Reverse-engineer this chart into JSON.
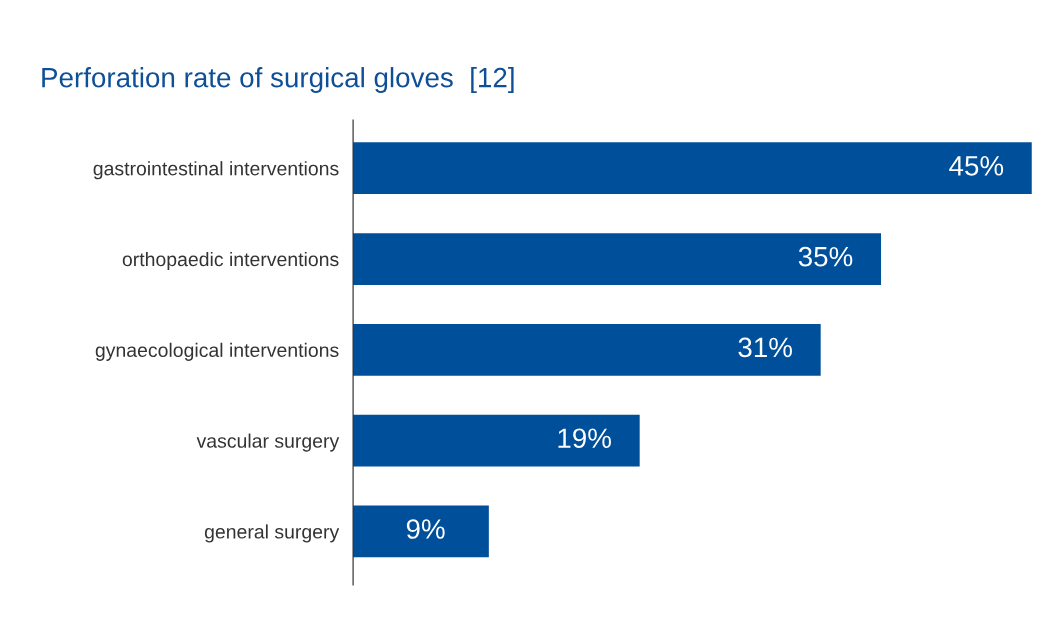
{
  "chart_data": {
    "type": "bar",
    "orientation": "horizontal",
    "title": "Perforation rate of surgical gloves  [12]",
    "categories": [
      "gastrointestinal interventions",
      "orthopaedic interventions",
      "gynaecological interventions",
      "vascular surgery",
      "general surgery"
    ],
    "values": [
      45,
      35,
      31,
      19,
      9
    ],
    "value_labels": [
      "45%",
      "35%",
      "31%",
      "19%",
      "9%"
    ],
    "color": "#004f9a",
    "grid": false,
    "legend": false,
    "tick_labels": "y"
  }
}
